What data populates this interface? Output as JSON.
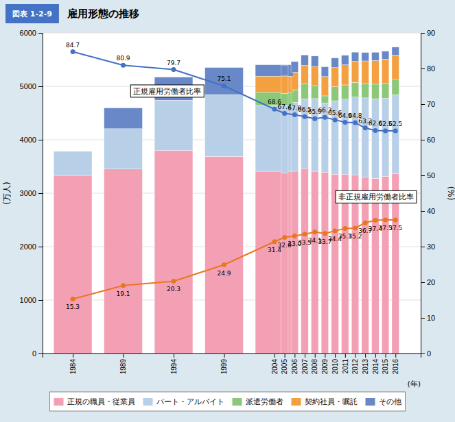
{
  "chart_data": {
    "type": "bar",
    "subtitle": "図表 1-2-9",
    "title": "雇用形態の推移",
    "xlabel": "(年)",
    "ylabel": "(万人)",
    "y2label": "(%)",
    "x": [
      1984,
      1989,
      1994,
      1999,
      2004,
      2005,
      2006,
      2007,
      2008,
      2009,
      2010,
      2011,
      2012,
      2013,
      2014,
      2015,
      2016
    ],
    "xlim": [
      1981,
      2018.5
    ],
    "xticks": [
      1984,
      1989,
      1994,
      1999,
      2004,
      2005,
      2006,
      2007,
      2008,
      2009,
      2010,
      2011,
      2012,
      2013,
      2014,
      2015,
      2016
    ],
    "ylim": [
      0,
      6000
    ],
    "yticks": [
      0,
      1000,
      2000,
      3000,
      4000,
      5000,
      6000
    ],
    "y2lim": [
      0,
      90
    ],
    "y2ticks": [
      0,
      10,
      20,
      30,
      40,
      50,
      60,
      70,
      80,
      90
    ],
    "stacked": true,
    "grid": true,
    "legend": "bottom",
    "series": [
      {
        "name": "正規の職員・従業員",
        "color": "#f4a0b4",
        "values": [
          3333,
          3452,
          3801,
          3688,
          3410,
          3374,
          3411,
          3461,
          3410,
          3395,
          3355,
          3355,
          3345,
          3302,
          3278,
          3317,
          3367
        ]
      },
      {
        "name": "パート・アルバイト",
        "color": "#b8cfe8",
        "values": [
          450,
          755,
          940,
          1157,
          1236,
          1268,
          1290,
          1303,
          1360,
          1295,
          1374,
          1404,
          1453,
          1481,
          1490,
          1460,
          1474
        ]
      },
      {
        "name": "派遣労働者",
        "color": "#8cc87a",
        "values": [
          0,
          0,
          0,
          0,
          242,
          227,
          234,
          284,
          243,
          131,
          264,
          267,
          276,
          268,
          272,
          279,
          291
        ]
      },
      {
        "name": "契約社員・嘱託",
        "color": "#f5a040",
        "values": [
          0,
          0,
          0,
          0,
          302,
          327,
          329,
          343,
          359,
          361,
          357,
          378,
          393,
          424,
          444,
          453,
          455
        ]
      },
      {
        "name": "その他",
        "color": "#6888c8",
        "values": [
          0,
          388,
          432,
          507,
          213,
          200,
          199,
          196,
          194,
          183,
          181,
          177,
          172,
          158,
          153,
          147,
          147
        ]
      },
      {
        "name": "正規雇用労働者比率",
        "type": "line",
        "axis": "y2",
        "color": "#4472c4",
        "marker": "circle",
        "data_labels": true,
        "values": [
          84.7,
          80.9,
          79.7,
          75.1,
          68.6,
          67.4,
          67.0,
          66.5,
          65.9,
          66.3,
          65.6,
          64.9,
          64.8,
          63.3,
          62.6,
          62.5,
          62.5
        ],
        "value_labels": [
          "84.7",
          "80.9",
          "79.7",
          "75.1",
          "68.6",
          "67.4",
          "67.0",
          "66.5",
          "65.9",
          "66.3",
          "65.6",
          "64.9",
          "64.8",
          "63.3",
          "62.6",
          "62.5",
          "62.5"
        ]
      },
      {
        "name": "非正規雇用労働者比率",
        "type": "line",
        "axis": "y2",
        "color": "#e87722",
        "marker": "circle",
        "data_labels": true,
        "values": [
          15.3,
          19.1,
          20.3,
          24.9,
          31.4,
          32.6,
          33.0,
          33.5,
          34.1,
          33.7,
          34.4,
          35.1,
          35.2,
          36.7,
          37.4,
          37.5,
          37.5
        ],
        "value_labels": [
          "15.3",
          "19.1",
          "20.3",
          "24.9",
          "31.4",
          "32.6",
          "33.0",
          "33.5",
          "34.1",
          "33.7",
          "34.4",
          "35.1",
          "35.2",
          "36.7",
          "37.4",
          "37.5",
          "37.5"
        ]
      }
    ]
  }
}
